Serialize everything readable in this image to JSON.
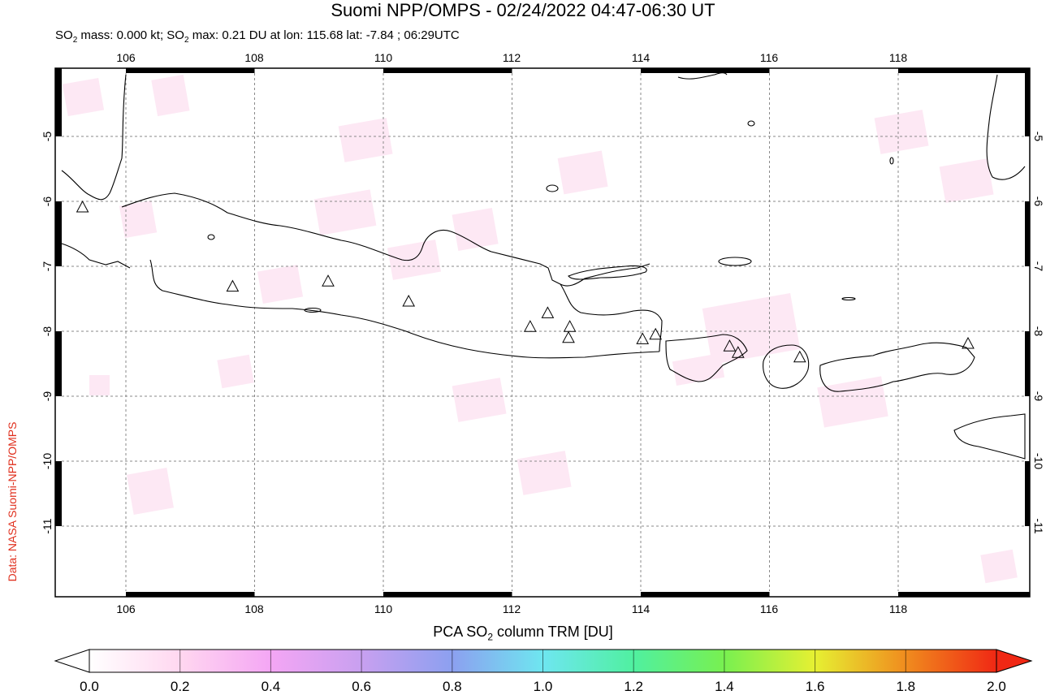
{
  "title": "Suomi NPP/OMPS - 02/24/2022 04:47-06:30 UT",
  "subtitle_parts": {
    "p1": "SO",
    "sub1": "2",
    "p2": " mass: 0.000 kt; SO",
    "sub2": "2",
    "p3": " max: 0.21 DU at lon: 115.68 lat: -7.84 ; 06:29UTC"
  },
  "credit": "Data: NASA Suomi-NPP/OMPS",
  "map": {
    "lon_range": [
      105,
      120
    ],
    "lat_range": [
      -12,
      -4
    ],
    "lon_ticks": [
      "106",
      "108",
      "110",
      "112",
      "114",
      "116",
      "118"
    ],
    "lat_ticks": [
      "-5",
      "-6",
      "-7",
      "-8",
      "-9",
      "-10",
      "-11"
    ],
    "volcanoes": [
      {
        "lon": 105.42,
        "lat": -6.1
      },
      {
        "lon": 107.73,
        "lat": -7.32
      },
      {
        "lon": 109.2,
        "lat": -7.24
      },
      {
        "lon": 110.44,
        "lat": -7.55
      },
      {
        "lon": 112.31,
        "lat": -7.94
      },
      {
        "lon": 112.58,
        "lat": -7.73
      },
      {
        "lon": 112.92,
        "lat": -7.94
      },
      {
        "lon": 112.9,
        "lat": -8.11
      },
      {
        "lon": 114.04,
        "lat": -8.13
      },
      {
        "lon": 114.24,
        "lat": -8.06
      },
      {
        "lon": 115.38,
        "lat": -8.24
      },
      {
        "lon": 115.51,
        "lat": -8.34
      },
      {
        "lon": 116.46,
        "lat": -8.41
      },
      {
        "lon": 119.05,
        "lat": -8.2
      }
    ]
  },
  "colorbar": {
    "title_parts": {
      "p1": "PCA SO",
      "sub": "2",
      "p2": " column TRM [DU]"
    },
    "min": 0.0,
    "max": 2.0,
    "labels": [
      "0.0",
      "0.2",
      "0.4",
      "0.6",
      "0.8",
      "1.0",
      "1.2",
      "1.4",
      "1.6",
      "1.8",
      "2.0"
    ],
    "colors": [
      "#ffffff",
      "#ffd7f0",
      "#f4a6f4",
      "#c8a0f0",
      "#8ca0f0",
      "#6ee6f0",
      "#50f0a0",
      "#78f050",
      "#e6f032",
      "#f08c1e",
      "#f02814"
    ]
  }
}
